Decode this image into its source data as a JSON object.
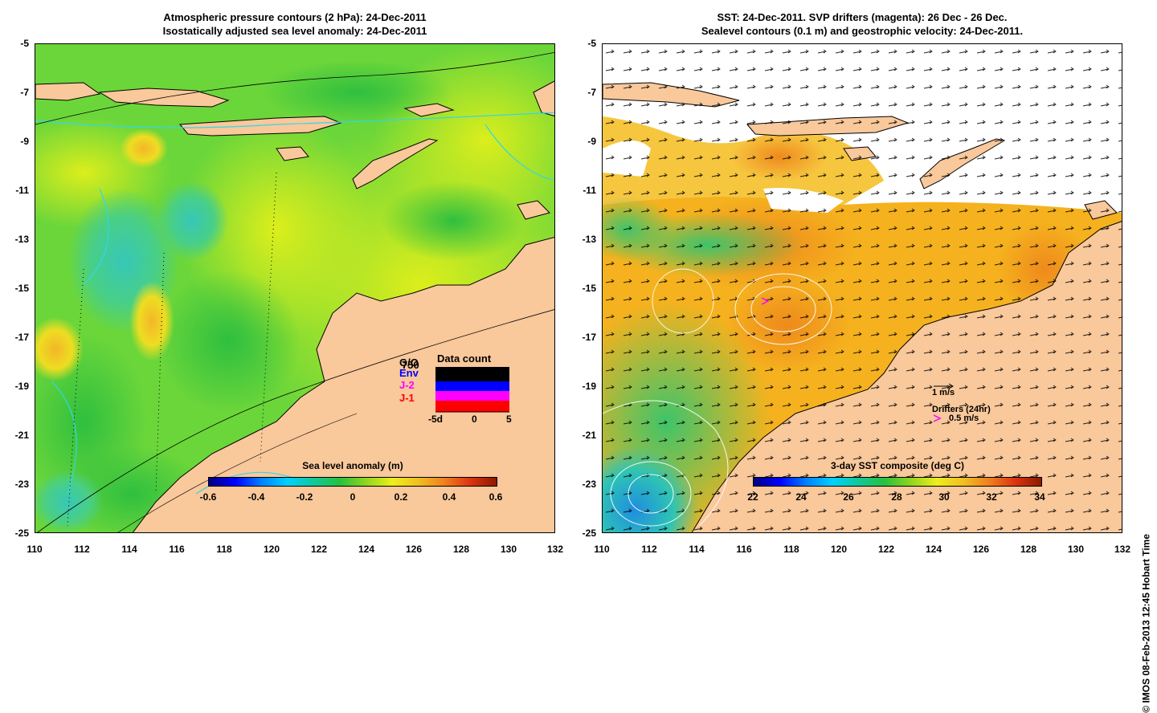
{
  "left": {
    "title_line1": "Atmospheric pressure contours (2 hPa): 24-Dec-2011",
    "title_line2": "Isostatically adjusted sea level anomaly: 24-Dec-2011",
    "colorbar": {
      "title": "Sea level anomaly (m)",
      "ticks": [
        "-0.6",
        "-0.4",
        "-0.2",
        "0",
        "0.2",
        "0.4",
        "0.6"
      ]
    },
    "data_count": {
      "title": "Data count",
      "legend": [
        {
          "label": "750",
          "color": "#000000"
        },
        {
          "label": "Env",
          "color": "#0000ff"
        },
        {
          "label": "J-2",
          "color": "#ff00ff"
        },
        {
          "label": "J-1",
          "color": "#ff0000"
        }
      ],
      "x_ticks": [
        "-5d",
        "0",
        "5"
      ],
      "other_label": "G/O"
    }
  },
  "right": {
    "title_line1": "SST: 24-Dec-2011. SVP drifters (magenta): 26 Dec - 26 Dec.",
    "title_line2": "Sealevel contours (0.1 m) and geostrophic velocity: 24-Dec-2011.",
    "colorbar": {
      "title": "3-day SST composite (deg C)",
      "ticks": [
        "22",
        "24",
        "26",
        "28",
        "30",
        "32",
        "34"
      ]
    },
    "velocity_scale": "1 m/s",
    "drifters_label": "Drifters (24hr)",
    "drifter_speed": "0.5 m/s"
  },
  "axes": {
    "x_ticks": [
      "110",
      "112",
      "114",
      "116",
      "118",
      "120",
      "122",
      "124",
      "126",
      "128",
      "130",
      "132"
    ],
    "y_ticks": [
      "-5",
      "-7",
      "-9",
      "-11",
      "-13",
      "-15",
      "-17",
      "-19",
      "-21",
      "-23",
      "-25"
    ]
  },
  "credit": "© IMOS 08-Feb-2013 12:45 Hobart Time",
  "colors": {
    "land": "#f9c89b",
    "ocean_green": "#3dcc3d",
    "ocean_yellow": "#d7ee1c",
    "ocean_cyan": "#2ec4b4",
    "sst_orange": "#f5b21e",
    "sst_deep": "#ef8a1c",
    "coast_cyan": "#32d6e8"
  }
}
